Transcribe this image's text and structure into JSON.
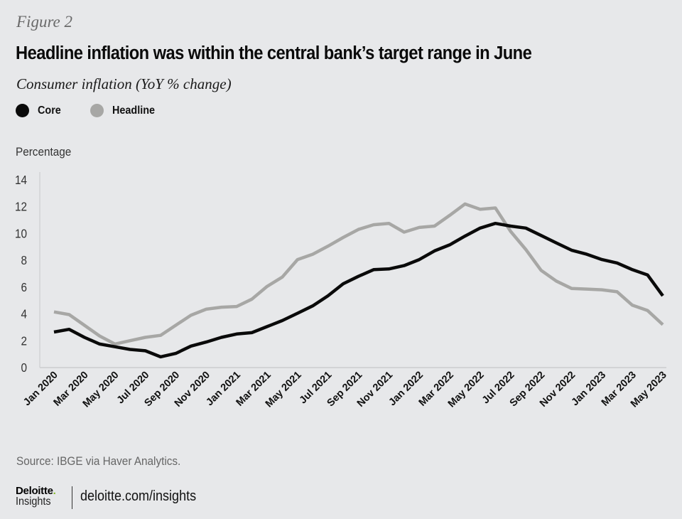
{
  "figure_label": "Figure 2",
  "footer": {
    "source": "Source: IBGE via Haver Analytics.",
    "logo_brand": "Deloitte",
    "logo_dot": ".",
    "logo_sub": "Insights",
    "url": "deloitte.com/insights"
  },
  "chart_data": {
    "type": "line",
    "title": "Headline inflation was within the central bank’s target range in June",
    "subtitle": "Consumer inflation (YoY % change)",
    "xlabel": "",
    "ylabel": "Percentage",
    "ylim": [
      0,
      14
    ],
    "yticks": [
      "0",
      "2",
      "4",
      "6",
      "8",
      "10",
      "12",
      "14"
    ],
    "ytick_values": [
      0,
      2,
      4,
      6,
      8,
      10,
      12,
      14
    ],
    "grid": false,
    "legend_position": "top-left",
    "x": [
      "Jan 2020",
      "Feb 2020",
      "Mar 2020",
      "Apr 2020",
      "May 2020",
      "Jun 2020",
      "Jul 2020",
      "Aug 2020",
      "Sep 2020",
      "Oct 2020",
      "Nov 2020",
      "Dec 2020",
      "Jan 2021",
      "Feb 2021",
      "Mar 2021",
      "Apr 2021",
      "May 2021",
      "Jun 2021",
      "Jul 2021",
      "Aug 2021",
      "Sep 2021",
      "Oct 2021",
      "Nov 2021",
      "Dec 2021",
      "Jan 2022",
      "Feb 2022",
      "Mar 2022",
      "Apr 2022",
      "May 2022",
      "Jun 2022",
      "Jul 2022",
      "Aug 2022",
      "Sep 2022",
      "Oct 2022",
      "Nov 2022",
      "Dec 2022",
      "Jan 2023",
      "Feb 2023",
      "Mar 2023",
      "Apr 2023",
      "May 2023"
    ],
    "xtick_labels": [
      "Jan 2020",
      "Mar 2020",
      "May 2020",
      "Jul 2020",
      "Sep 2020",
      "Nov 2020",
      "Jan 2021",
      "Mar 2021",
      "May 2021",
      "Jul 2021",
      "Sep 2021",
      "Nov 2021",
      "Jan 2022",
      "Mar 2022",
      "May 2022",
      "Jul 2022",
      "Sep 2022",
      "Nov 2022",
      "Jan 2023",
      "Mar 2023",
      "May 2023"
    ],
    "series": [
      {
        "name": "Core",
        "color": "#0a0a0a",
        "values": [
          2.6,
          2.8,
          2.2,
          1.7,
          1.5,
          1.3,
          1.2,
          0.75,
          1.0,
          1.55,
          1.85,
          2.2,
          2.45,
          2.55,
          3.0,
          3.45,
          4.0,
          4.55,
          5.3,
          6.2,
          6.75,
          7.25,
          7.3,
          7.55,
          8.0,
          8.65,
          9.1,
          9.75,
          10.35,
          10.7,
          10.5,
          10.35,
          9.8,
          9.25,
          8.7,
          8.4,
          8.0,
          7.75,
          7.25,
          6.85,
          5.3
        ]
      },
      {
        "name": "Headline",
        "color": "#a7a7a5",
        "values": [
          4.1,
          3.9,
          3.1,
          2.3,
          1.7,
          1.95,
          2.2,
          2.35,
          3.1,
          3.85,
          4.3,
          4.45,
          4.5,
          5.05,
          6.0,
          6.7,
          8.0,
          8.4,
          9.0,
          9.65,
          10.25,
          10.6,
          10.7,
          10.05,
          10.4,
          10.5,
          11.3,
          12.15,
          11.75,
          11.85,
          10.1,
          8.75,
          7.2,
          6.4,
          5.85,
          5.8,
          5.75,
          5.6,
          4.6,
          4.2,
          3.15
        ]
      }
    ]
  }
}
